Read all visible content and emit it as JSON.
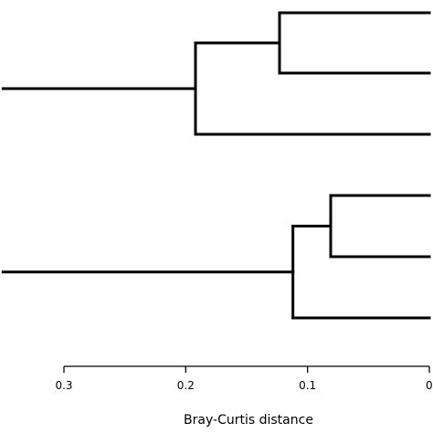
{
  "chart_data": {
    "type": "dendrogram",
    "xlabel": "Bray-Curtis distance",
    "xlim": [
      0.3,
      0.0
    ],
    "ticks": [
      {
        "value": 0.3,
        "label": "0.3"
      },
      {
        "value": 0.2,
        "label": "0.2"
      },
      {
        "value": 0.1,
        "label": "0.1"
      },
      {
        "value": 0.0,
        "label": "0."
      }
    ],
    "leaves": 6,
    "merges": [
      {
        "id": "A",
        "left": "leaf:0",
        "right": "leaf:1",
        "height": 0.123
      },
      {
        "id": "B",
        "left": "node:A",
        "right": "leaf:2",
        "height": 0.192
      },
      {
        "id": "C",
        "left": "leaf:3",
        "right": "leaf:4",
        "height": 0.081
      },
      {
        "id": "D",
        "left": "node:C",
        "right": "leaf:5",
        "height": 0.112
      },
      {
        "id": "root_top",
        "left": "node:B",
        "stem_to": 0.35
      },
      {
        "id": "root_bottom",
        "left": "node:D",
        "stem_to": 0.35
      }
    ]
  }
}
